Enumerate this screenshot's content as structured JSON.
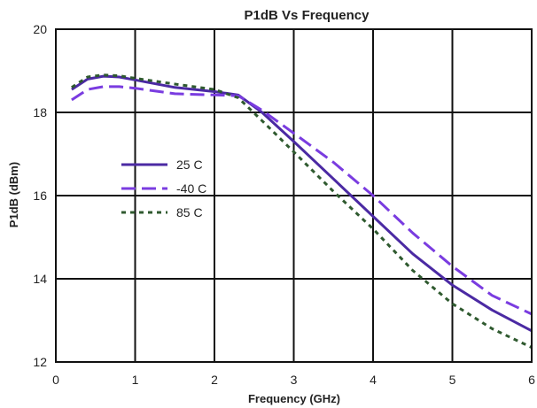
{
  "chart_data": {
    "type": "line",
    "title": "P1dB Vs Frequency",
    "xlabel": "Frequency (GHz)",
    "ylabel": "P1dB (dBm)",
    "xlim": [
      0,
      6
    ],
    "ylim": [
      12,
      20
    ],
    "xticks": [
      0,
      1,
      2,
      3,
      4,
      5,
      6
    ],
    "yticks": [
      12,
      14,
      16,
      18,
      20
    ],
    "xtick_labels": [
      "0",
      "1",
      "2",
      "3",
      "4",
      "5",
      "6"
    ],
    "ytick_labels": [
      "12",
      "14",
      "16",
      "18",
      "20"
    ],
    "grid": true,
    "legend_position": "left-center",
    "series": [
      {
        "name": "25 C",
        "color": "#4b2aa3",
        "style": "solid",
        "x": [
          0.2,
          0.4,
          0.6,
          0.8,
          1.0,
          1.5,
          2.0,
          2.3,
          2.6,
          3.0,
          3.5,
          4.0,
          4.5,
          5.0,
          5.5,
          6.0
        ],
        "y": [
          18.55,
          18.8,
          18.87,
          18.85,
          18.78,
          18.6,
          18.5,
          18.42,
          18.0,
          17.3,
          16.4,
          15.5,
          14.6,
          13.85,
          13.25,
          12.75
        ]
      },
      {
        "name": "-40 C",
        "color": "#7a3ce0",
        "style": "dashed",
        "x": [
          0.2,
          0.4,
          0.6,
          0.8,
          1.0,
          1.5,
          2.0,
          2.3,
          2.6,
          3.0,
          3.5,
          4.0,
          4.5,
          5.0,
          5.5,
          6.0
        ],
        "y": [
          18.3,
          18.55,
          18.62,
          18.62,
          18.58,
          18.45,
          18.42,
          18.4,
          18.05,
          17.5,
          16.8,
          16.0,
          15.1,
          14.3,
          13.6,
          13.15
        ]
      },
      {
        "name": "85 C",
        "color": "#2f5a2f",
        "style": "dotted",
        "x": [
          0.2,
          0.4,
          0.6,
          0.8,
          1.0,
          1.5,
          2.0,
          2.3,
          2.6,
          3.0,
          3.5,
          4.0,
          4.5,
          5.0,
          5.5,
          6.0
        ],
        "y": [
          18.6,
          18.85,
          18.9,
          18.88,
          18.82,
          18.68,
          18.55,
          18.35,
          17.8,
          17.05,
          16.1,
          15.2,
          14.2,
          13.4,
          12.8,
          12.35
        ]
      }
    ]
  }
}
